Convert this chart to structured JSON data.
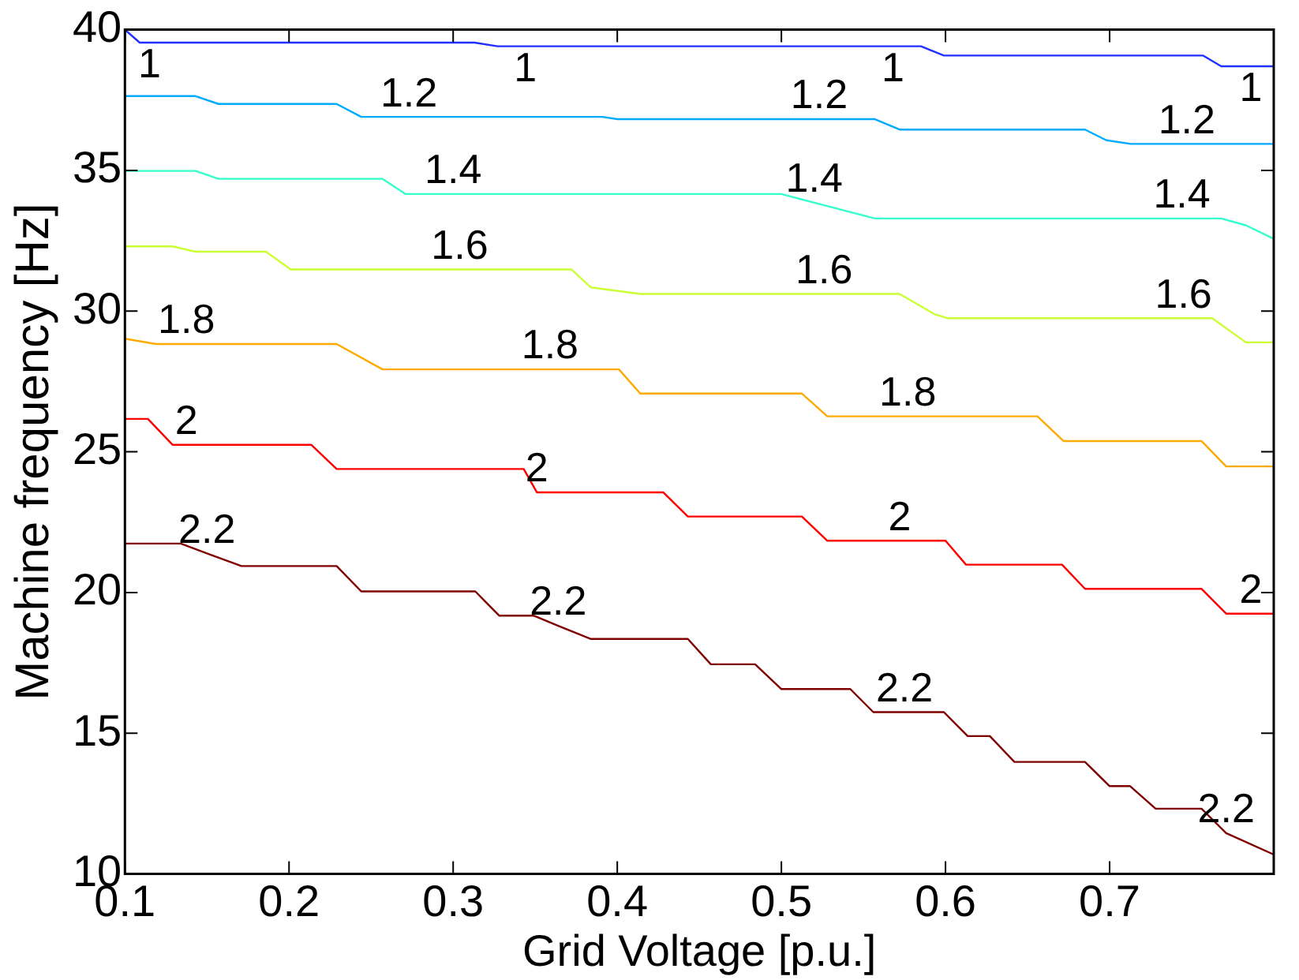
{
  "chart_data": {
    "type": "line",
    "xlabel": "Grid Voltage [p.u.]",
    "ylabel": "Machine frequency [Hz]",
    "xlim": [
      0.1,
      0.8
    ],
    "ylim": [
      10,
      40
    ],
    "xticks": [
      0.1,
      0.2,
      0.3,
      0.4,
      0.5,
      0.6,
      0.7
    ],
    "yticks": [
      10,
      15,
      20,
      25,
      30,
      35,
      40
    ],
    "grid": false,
    "legend": false,
    "marker": "none",
    "line_style": "solid",
    "series": [
      {
        "color": "#2030ff",
        "x": [
          0.1,
          0.109,
          0.115,
          0.313,
          0.327,
          0.344,
          0.568,
          0.585,
          0.599,
          0.757,
          0.768,
          0.786,
          0.8
        ],
        "values": [
          40,
          39.54,
          39.54,
          39.54,
          39.41,
          39.41,
          39.41,
          39.41,
          39.08,
          39.08,
          38.7,
          38.7,
          38.7
        ]
      },
      {
        "color": "#00aaff",
        "x": [
          0.1,
          0.143,
          0.157,
          0.229,
          0.244,
          0.273,
          0.391,
          0.4,
          0.523,
          0.557,
          0.572,
          0.685,
          0.698,
          0.713,
          0.747,
          0.8
        ],
        "values": [
          37.64,
          37.64,
          37.36,
          37.36,
          36.9,
          36.9,
          36.9,
          36.82,
          36.82,
          36.82,
          36.45,
          36.45,
          36.07,
          35.94,
          35.94,
          35.94
        ]
      },
      {
        "color": "#33ffcc",
        "x": [
          0.1,
          0.143,
          0.157,
          0.257,
          0.271,
          0.3,
          0.5,
          0.52,
          0.557,
          0.744,
          0.768,
          0.783,
          0.8
        ],
        "values": [
          34.98,
          34.98,
          34.7,
          34.7,
          34.16,
          34.16,
          34.16,
          33.85,
          33.29,
          33.29,
          33.29,
          33.05,
          32.57
        ]
      },
      {
        "color": "#ccff33",
        "x": [
          0.1,
          0.129,
          0.143,
          0.186,
          0.201,
          0.304,
          0.372,
          0.384,
          0.414,
          0.526,
          0.572,
          0.593,
          0.601,
          0.745,
          0.7625,
          0.783,
          0.8
        ],
        "values": [
          32.3,
          32.3,
          32.11,
          32.11,
          31.48,
          31.48,
          31.48,
          30.84,
          30.61,
          30.61,
          30.61,
          29.9,
          29.75,
          29.75,
          29.75,
          28.89,
          28.89
        ]
      },
      {
        "color": "#ffaa00",
        "x": [
          0.1,
          0.119,
          0.1375,
          0.229,
          0.257,
          0.359,
          0.401,
          0.414,
          0.5125,
          0.528,
          0.577,
          0.656,
          0.672,
          0.756,
          0.771,
          0.8
        ],
        "values": [
          29.02,
          28.83,
          28.83,
          28.83,
          27.93,
          27.93,
          27.93,
          27.07,
          27.07,
          26.26,
          26.26,
          26.26,
          25.38,
          25.38,
          24.48,
          24.48
        ]
      },
      {
        "color": "#ff0000",
        "x": [
          0.1,
          0.114,
          0.129,
          0.1375,
          0.2135,
          0.229,
          0.343,
          0.351,
          0.428,
          0.443,
          0.5125,
          0.528,
          0.572,
          0.6,
          0.6125,
          0.671,
          0.685,
          0.756,
          0.771,
          0.786,
          0.8
        ],
        "values": [
          26.17,
          26.17,
          25.25,
          25.25,
          25.25,
          24.39,
          24.39,
          23.56,
          23.56,
          22.7,
          22.7,
          21.84,
          21.84,
          21.84,
          20.99,
          20.99,
          20.13,
          20.13,
          19.25,
          19.25,
          19.25
        ]
      },
      {
        "color": "#800000",
        "x": [
          0.1,
          0.134,
          0.15,
          0.171,
          0.229,
          0.244,
          0.3135,
          0.328,
          0.349,
          0.364,
          0.384,
          0.443,
          0.457,
          0.484,
          0.5,
          0.542,
          0.556,
          0.575,
          0.599,
          0.6135,
          0.627,
          0.642,
          0.685,
          0.7,
          0.7125,
          0.728,
          0.756,
          0.771,
          0.8
        ],
        "values": [
          21.74,
          21.74,
          21.39,
          20.94,
          20.94,
          20.04,
          20.04,
          19.18,
          19.18,
          18.82,
          18.35,
          18.35,
          17.45,
          17.45,
          16.57,
          16.57,
          15.75,
          15.75,
          15.75,
          14.9,
          14.9,
          13.98,
          13.98,
          13.12,
          13.12,
          12.32,
          12.32,
          11.45,
          10.69
        ]
      }
    ],
    "annotations": [
      {
        "text": "1",
        "x": 0.115,
        "y": 39.54
      },
      {
        "text": "1",
        "x": 0.344,
        "y": 39.41
      },
      {
        "text": "1",
        "x": 0.568,
        "y": 39.41
      },
      {
        "text": "1",
        "x": 0.786,
        "y": 38.7
      },
      {
        "text": "1.2",
        "x": 0.273,
        "y": 36.9
      },
      {
        "text": "1.2",
        "x": 0.523,
        "y": 36.82
      },
      {
        "text": "1.2",
        "x": 0.747,
        "y": 35.94
      },
      {
        "text": "1.4",
        "x": 0.3,
        "y": 34.16
      },
      {
        "text": "1.4",
        "x": 0.52,
        "y": 33.85
      },
      {
        "text": "1.4",
        "x": 0.744,
        "y": 33.29
      },
      {
        "text": "1.6",
        "x": 0.304,
        "y": 31.48
      },
      {
        "text": "1.6",
        "x": 0.526,
        "y": 30.61
      },
      {
        "text": "1.6",
        "x": 0.745,
        "y": 29.75
      },
      {
        "text": "1.8",
        "x": 0.1375,
        "y": 28.83
      },
      {
        "text": "1.8",
        "x": 0.359,
        "y": 27.93
      },
      {
        "text": "1.8",
        "x": 0.577,
        "y": 26.26
      },
      {
        "text": "2",
        "x": 0.1375,
        "y": 25.25
      },
      {
        "text": "2",
        "x": 0.351,
        "y": 23.56
      },
      {
        "text": "2",
        "x": 0.572,
        "y": 21.84
      },
      {
        "text": "2",
        "x": 0.786,
        "y": 19.25
      },
      {
        "text": "2.2",
        "x": 0.15,
        "y": 21.39
      },
      {
        "text": "2.2",
        "x": 0.364,
        "y": 18.82
      },
      {
        "text": "2.2",
        "x": 0.575,
        "y": 15.75
      },
      {
        "text": "2.2",
        "x": 0.771,
        "y": 11.45
      }
    ]
  }
}
